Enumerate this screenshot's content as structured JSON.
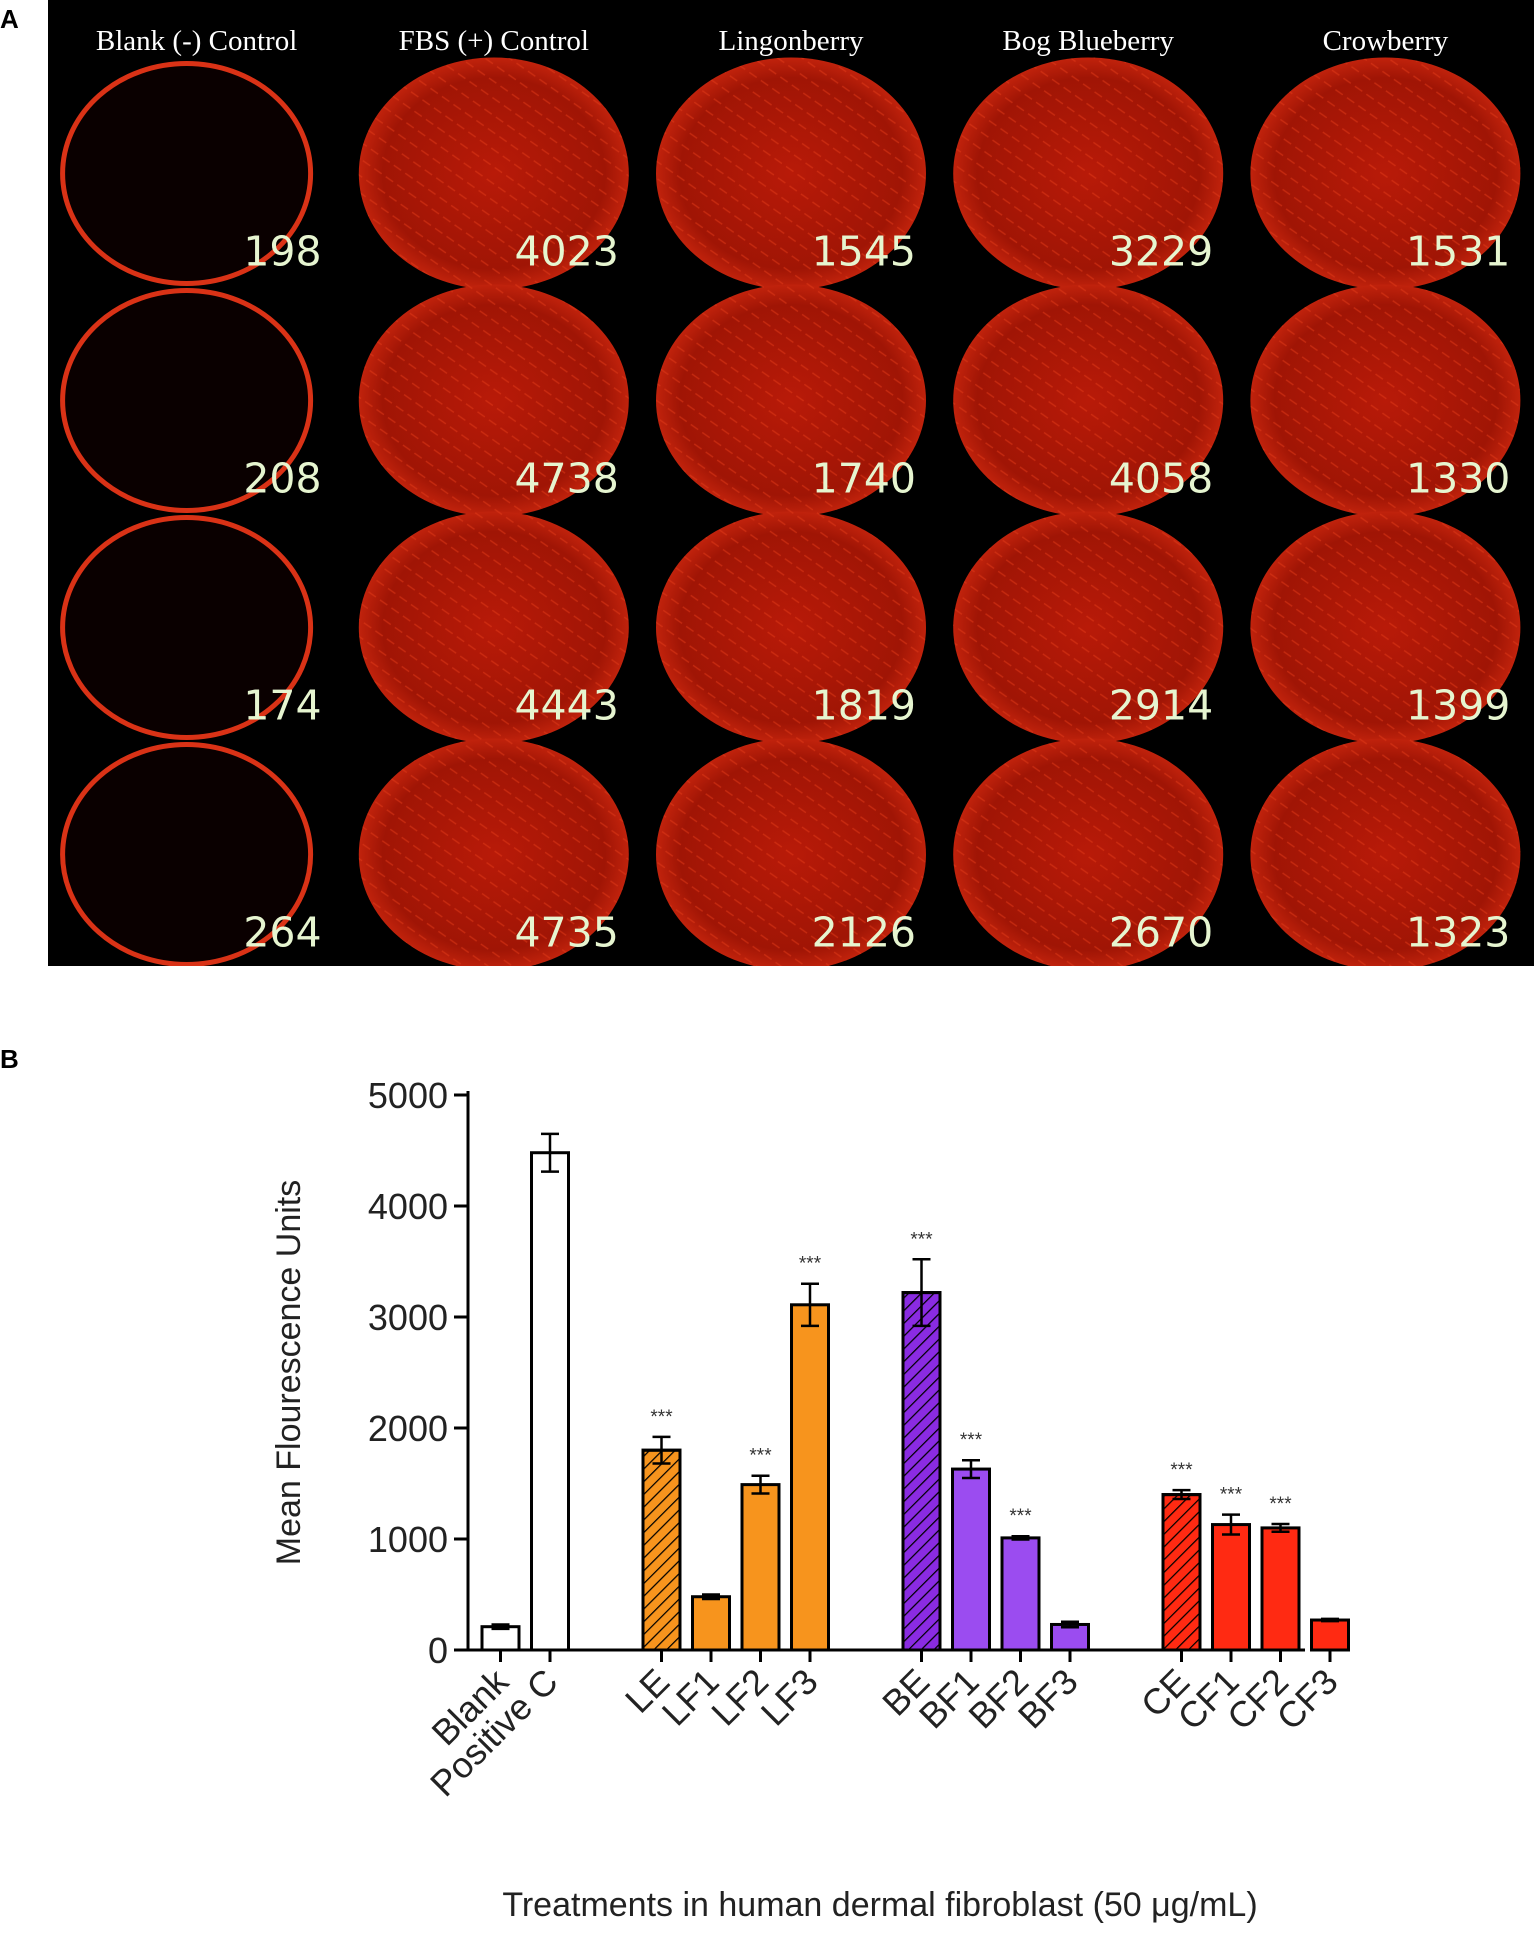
{
  "panel_a": {
    "letter": "A",
    "column_headers": [
      "Blank (-) Control",
      "FBS (+) Control",
      "Lingonberry",
      "Bog Blueberry",
      "Crowberry"
    ],
    "values": [
      [
        "198",
        "4023",
        "1545",
        "3229",
        "1531"
      ],
      [
        "208",
        "4738",
        "1740",
        "4058",
        "1330"
      ],
      [
        "174",
        "4443",
        "1819",
        "2914",
        "1399"
      ],
      [
        "264",
        "4735",
        "2126",
        "2670",
        "1323"
      ]
    ],
    "colors": {
      "label": "#e6f5d0",
      "header": "#ffffff",
      "well": "#c01a08",
      "ring": "#ff3b1a"
    }
  },
  "panel_b": {
    "letter": "B"
  },
  "chart_data": {
    "type": "bar",
    "ylabel": "Mean Flourescence Units",
    "xlabel": "Treatments in human dermal fibroblast (50 μg/mL)",
    "ylim": [
      0,
      5000
    ],
    "yticks": [
      "0",
      "1000",
      "2000",
      "3000",
      "4000",
      "5000"
    ],
    "categories": [
      "Blank",
      "Positive C",
      "LE",
      "LF1",
      "LF2",
      "LF3",
      "BE",
      "BF1",
      "BF2",
      "BF3",
      "CE",
      "CF1",
      "CF2",
      "CF3"
    ],
    "values": [
      210,
      4480,
      1800,
      480,
      1490,
      3110,
      3220,
      1630,
      1010,
      230,
      1400,
      1130,
      1100,
      270
    ],
    "errors": [
      20,
      170,
      120,
      20,
      80,
      190,
      300,
      80,
      15,
      25,
      40,
      90,
      35,
      10
    ],
    "significance": [
      "",
      "",
      "***",
      "",
      "***",
      "***",
      "***",
      "***",
      "***",
      "",
      "***",
      "***",
      "***",
      ""
    ],
    "hatched": [
      false,
      false,
      true,
      false,
      false,
      false,
      true,
      false,
      false,
      false,
      true,
      false,
      false,
      false
    ],
    "bar_colors": [
      "#ffffff",
      "#ffffff",
      "#f7941d",
      "#f7941d",
      "#f7941d",
      "#f7941d",
      "#8a2be2",
      "#9b4cf0",
      "#9b4cf0",
      "#9b4cf0",
      "#ff2a12",
      "#ff2a12",
      "#ff2a12",
      "#ff2a12"
    ],
    "groups": [
      0,
      0,
      1,
      1,
      1,
      1,
      2,
      2,
      2,
      2,
      3,
      3,
      3,
      3
    ],
    "grid": false
  }
}
